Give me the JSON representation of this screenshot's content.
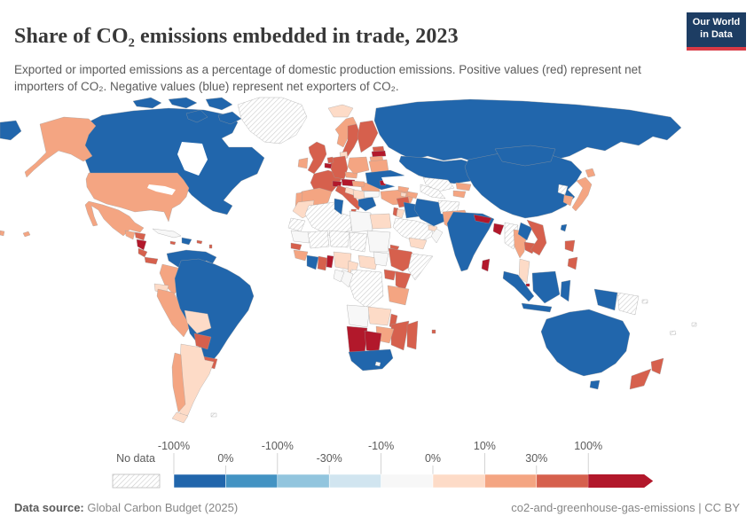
{
  "header": {
    "title": "Share of CO₂ emissions embedded in trade, 2023",
    "subtitle": "Exported or imported emissions as a percentage of domestic production emissions. Positive values (red) represent net importers of CO₂. Negative values (blue) represent net exporters of CO₂.",
    "logo": {
      "line1": "Our World",
      "line2": "in Data"
    }
  },
  "colors": {
    "logo_bg": "#1d3d63",
    "logo_accent": "#d93a45",
    "country_border": "#9d9d9d",
    "hatch_line": "#cccccc",
    "ocean": "#ffffff"
  },
  "legend": {
    "no_data_label": "No data",
    "tick_labels": [
      "-100%",
      "0%",
      "-100%",
      "-30%",
      "-10%",
      "0%",
      "10%",
      "30%",
      "100%"
    ],
    "bin_colors": [
      "#2166ac",
      "#4393c3",
      "#92c5de",
      "#d1e5f0",
      "#f7f7f7",
      "#fddbc7",
      "#f4a582",
      "#d6604d"
    ],
    "arrow_color": "#b2182b"
  },
  "footer": {
    "source_label": "Data source:",
    "source_value": "Global Carbon Budget (2025)",
    "rights": "co2-and-greenhouse-gas-emissions | CC BY"
  },
  "chart_data": {
    "type": "choropleth_map",
    "title": "Share of CO₂ emissions embedded in trade, 2023",
    "year": 2023,
    "unit": "%",
    "color_meaning": {
      "positive_red": "net importers of CO₂",
      "negative_blue": "net exporters of CO₂",
      "hatch": "No data"
    },
    "legend_tick_labels": [
      "-100%",
      "0%",
      "-100%",
      "-30%",
      "-10%",
      "0%",
      "10%",
      "30%",
      "100%"
    ],
    "regions": [
      {
        "name": "russia",
        "fill": "#2166ac"
      },
      {
        "name": "russia-wrap-left",
        "fill": "#2166ac"
      },
      {
        "name": "kazakhstan",
        "fill": "#2166ac"
      },
      {
        "name": "china",
        "fill": "#2166ac"
      },
      {
        "name": "mongolia",
        "fill": "#2166ac"
      },
      {
        "name": "canada",
        "fill": "#2166ac"
      },
      {
        "name": "canada-arctic-islands",
        "fill": "#2166ac"
      },
      {
        "name": "greenland",
        "fill": "hatch"
      },
      {
        "name": "alaska-usa",
        "fill": "#f4a582"
      },
      {
        "name": "usa",
        "fill": "#f4a582"
      },
      {
        "name": "hawaii-usa",
        "fill": "#f4a582"
      },
      {
        "name": "aleutian-speck",
        "fill": "#f4a582"
      },
      {
        "name": "mexico",
        "fill": "#f4a582"
      },
      {
        "name": "water-hudson-bay",
        "fill": "#ffffff"
      },
      {
        "name": "water-great-lakes",
        "fill": "#ffffff"
      },
      {
        "name": "guatemala",
        "fill": "#f4a582"
      },
      {
        "name": "honduras",
        "fill": "#d6604d"
      },
      {
        "name": "nicaragua",
        "fill": "#b2182b"
      },
      {
        "name": "costa-rica",
        "fill": "#d6604d"
      },
      {
        "name": "panama",
        "fill": "#d6604d"
      },
      {
        "name": "cuba",
        "fill": "#f7f7f7"
      },
      {
        "name": "jamaica",
        "fill": "#d6604d"
      },
      {
        "name": "hispaniola",
        "fill": "#2166ac"
      },
      {
        "name": "puerto-rico",
        "fill": "#d6604d"
      },
      {
        "name": "lesser-antilles",
        "fill": "#d6604d"
      },
      {
        "name": "venezuela",
        "fill": "#2166ac"
      },
      {
        "name": "colombia",
        "fill": "#f4a582"
      },
      {
        "name": "guyanas",
        "fill": "hatch"
      },
      {
        "name": "ecuador",
        "fill": "#fddbc7"
      },
      {
        "name": "peru",
        "fill": "#f4a582"
      },
      {
        "name": "brazil",
        "fill": "#2166ac"
      },
      {
        "name": "bolivia",
        "fill": "#fddbc7"
      },
      {
        "name": "paraguay",
        "fill": "#d6604d"
      },
      {
        "name": "uruguay",
        "fill": "#d6604d"
      },
      {
        "name": "argentina",
        "fill": "#fddbc7"
      },
      {
        "name": "chile",
        "fill": "#f4a582"
      },
      {
        "name": "chile-tip",
        "fill": "#fddbc7"
      },
      {
        "name": "falklands",
        "fill": "hatch"
      },
      {
        "name": "iceland",
        "fill": "#fddbc7"
      },
      {
        "name": "norway",
        "fill": "#f4a582"
      },
      {
        "name": "sweden",
        "fill": "#d6604d"
      },
      {
        "name": "finland",
        "fill": "#d6604d"
      },
      {
        "name": "denmark",
        "fill": "#fddbc7"
      },
      {
        "name": "united-kingdom",
        "fill": "#d6604d"
      },
      {
        "name": "ireland",
        "fill": "#f4a582"
      },
      {
        "name": "france",
        "fill": "#d6604d"
      },
      {
        "name": "spain",
        "fill": "#f4a582"
      },
      {
        "name": "portugal",
        "fill": "#f4a582"
      },
      {
        "name": "germany",
        "fill": "#d6604d"
      },
      {
        "name": "netherlands",
        "fill": "#d6604d"
      },
      {
        "name": "belgium",
        "fill": "#b2182b"
      },
      {
        "name": "switzerland",
        "fill": "#b2182b"
      },
      {
        "name": "austria",
        "fill": "#b2182b"
      },
      {
        "name": "czechia",
        "fill": "#f4a582"
      },
      {
        "name": "poland",
        "fill": "#f4a582"
      },
      {
        "name": "italy",
        "fill": "#d6604d"
      },
      {
        "name": "croatia-slovenia",
        "fill": "#fddbc7"
      },
      {
        "name": "serbia-bosnia",
        "fill": "#fddbc7"
      },
      {
        "name": "greece",
        "fill": "#2166ac"
      },
      {
        "name": "bulgaria",
        "fill": "#f7f7f7"
      },
      {
        "name": "romania",
        "fill": "#f4a582"
      },
      {
        "name": "hungary",
        "fill": "#f4a582"
      },
      {
        "name": "estonia",
        "fill": "#d6604d"
      },
      {
        "name": "latvia",
        "fill": "#b2182b"
      },
      {
        "name": "lithuania",
        "fill": "#f4a582"
      },
      {
        "name": "belarus",
        "fill": "#f4a582"
      },
      {
        "name": "ukraine",
        "fill": "#2166ac"
      },
      {
        "name": "moldova",
        "fill": "#b2182b"
      },
      {
        "name": "water-black-sea",
        "fill": "#ffffff"
      },
      {
        "name": "water-caspian-sea",
        "fill": "#ffffff"
      },
      {
        "name": "turkey",
        "fill": "#f4a582"
      },
      {
        "name": "georgia",
        "fill": "#f4a582"
      },
      {
        "name": "azerbaijan",
        "fill": "#f4a582"
      },
      {
        "name": "armenia",
        "fill": "#fddbc7"
      },
      {
        "name": "syria",
        "fill": "#d6604d"
      },
      {
        "name": "israel",
        "fill": "#d6604d"
      },
      {
        "name": "jordan",
        "fill": "#fddbc7"
      },
      {
        "name": "iraq",
        "fill": "#2166ac"
      },
      {
        "name": "iran",
        "fill": "#2166ac"
      },
      {
        "name": "saudi-arabia",
        "fill": "hatch"
      },
      {
        "name": "uae",
        "fill": "#fddbc7"
      },
      {
        "name": "oman",
        "fill": "#f7f7f7"
      },
      {
        "name": "yemen",
        "fill": "#fddbc7"
      },
      {
        "name": "uzbekistan",
        "fill": "hatch"
      },
      {
        "name": "turkmenistan",
        "fill": "hatch"
      },
      {
        "name": "kyrgyzstan",
        "fill": "#f4a582"
      },
      {
        "name": "tajikistan",
        "fill": "#f4a582"
      },
      {
        "name": "afghanistan",
        "fill": "hatch"
      },
      {
        "name": "pakistan",
        "fill": "#f4a582"
      },
      {
        "name": "india",
        "fill": "#2166ac"
      },
      {
        "name": "nepal",
        "fill": "#b2182b"
      },
      {
        "name": "bangladesh",
        "fill": "#b2182b"
      },
      {
        "name": "sri-lanka",
        "fill": "#b2182b"
      },
      {
        "name": "myanmar",
        "fill": "hatch"
      },
      {
        "name": "thailand",
        "fill": "#f4a582"
      },
      {
        "name": "laos",
        "fill": "#2166ac"
      },
      {
        "name": "cambodia",
        "fill": "#d6604d"
      },
      {
        "name": "vietnam",
        "fill": "#d6604d"
      },
      {
        "name": "malaysia-peninsula",
        "fill": "#fddbc7"
      },
      {
        "name": "singapore",
        "fill": "#b2182b"
      },
      {
        "name": "indonesia-sumatra",
        "fill": "#2166ac"
      },
      {
        "name": "indonesia-java",
        "fill": "#2166ac"
      },
      {
        "name": "borneo",
        "fill": "#2166ac"
      },
      {
        "name": "sulawesi",
        "fill": "#2166ac"
      },
      {
        "name": "new-guinea-indonesia",
        "fill": "#2166ac"
      },
      {
        "name": "papua-new-guinea",
        "fill": "hatch"
      },
      {
        "name": "north-korea",
        "fill": "hatch"
      },
      {
        "name": "south-korea",
        "fill": "#f4a582"
      },
      {
        "name": "japan",
        "fill": "#f4a582"
      },
      {
        "name": "taiwan",
        "fill": "#2166ac"
      },
      {
        "name": "philippines",
        "fill": "#d6604d"
      },
      {
        "name": "morocco",
        "fill": "#fddbc7"
      },
      {
        "name": "western-sahara",
        "fill": "hatch"
      },
      {
        "name": "algeria",
        "fill": "hatch"
      },
      {
        "name": "tunisia",
        "fill": "#2166ac"
      },
      {
        "name": "libya",
        "fill": "#f7f7f7"
      },
      {
        "name": "egypt",
        "fill": "#fddbc7"
      },
      {
        "name": "mauritania",
        "fill": "#f7f7f7"
      },
      {
        "name": "mali",
        "fill": "hatch"
      },
      {
        "name": "niger",
        "fill": "hatch"
      },
      {
        "name": "chad",
        "fill": "hatch"
      },
      {
        "name": "sudan",
        "fill": "#f7f7f7"
      },
      {
        "name": "eritrea",
        "fill": "#d6604d"
      },
      {
        "name": "senegal",
        "fill": "#d6604d"
      },
      {
        "name": "guinea",
        "fill": "#f4a582"
      },
      {
        "name": "cote-divoire",
        "fill": "#2166ac"
      },
      {
        "name": "ghana",
        "fill": "#d6604d"
      },
      {
        "name": "togo-benin",
        "fill": "#b2182b"
      },
      {
        "name": "nigeria",
        "fill": "#fddbc7"
      },
      {
        "name": "cameroon",
        "fill": "#fddbc7"
      },
      {
        "name": "central-african-republic",
        "fill": "#fddbc7"
      },
      {
        "name": "south-sudan",
        "fill": "#f7f7f7"
      },
      {
        "name": "ethiopia",
        "fill": "#d6604d"
      },
      {
        "name": "somalia",
        "fill": "hatch"
      },
      {
        "name": "uganda",
        "fill": "#d6604d"
      },
      {
        "name": "kenya",
        "fill": "#d6604d"
      },
      {
        "name": "tanzania",
        "fill": "#f4a582"
      },
      {
        "name": "drc",
        "fill": "hatch"
      },
      {
        "name": "congo",
        "fill": "#f7f7f7"
      },
      {
        "name": "gabon",
        "fill": "#f7f7f7"
      },
      {
        "name": "angola",
        "fill": "#f7f7f7"
      },
      {
        "name": "zambia",
        "fill": "#fddbc7"
      },
      {
        "name": "malawi",
        "fill": "#d6604d"
      },
      {
        "name": "mozambique",
        "fill": "#d6604d"
      },
      {
        "name": "zimbabwe",
        "fill": "#f4a582"
      },
      {
        "name": "namibia",
        "fill": "#b2182b"
      },
      {
        "name": "botswana",
        "fill": "#b2182b"
      },
      {
        "name": "south-africa",
        "fill": "#2166ac"
      },
      {
        "name": "lesotho",
        "fill": "#f7f7f7"
      },
      {
        "name": "madagascar",
        "fill": "#d6604d"
      },
      {
        "name": "mauritius",
        "fill": "#d6604d"
      },
      {
        "name": "australia",
        "fill": "#2166ac"
      },
      {
        "name": "tasmania",
        "fill": "#2166ac"
      },
      {
        "name": "new-zealand-north",
        "fill": "#d6604d"
      },
      {
        "name": "new-zealand-south",
        "fill": "#d6604d"
      },
      {
        "name": "pacific-islands-1",
        "fill": "hatch"
      },
      {
        "name": "pacific-islands-2",
        "fill": "hatch"
      },
      {
        "name": "solomon-islands",
        "fill": "hatch"
      }
    ]
  }
}
